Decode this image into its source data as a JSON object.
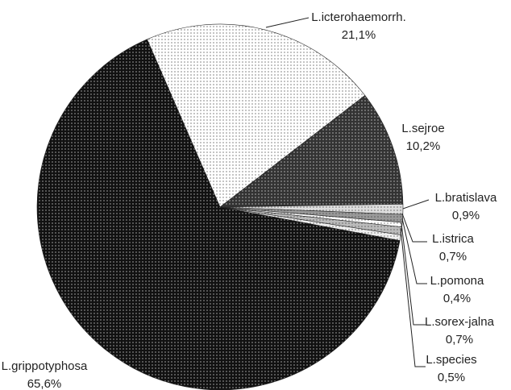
{
  "chart_data": {
    "type": "pie",
    "categories": [
      "L.icterohaemorrh.",
      "L.sejroe",
      "L.bratislava",
      "L.istrica",
      "L.pomona",
      "L.sorex-jalna",
      "L.species",
      "L.grippotyphosa"
    ],
    "values": [
      21.1,
      10.2,
      0.9,
      0.7,
      0.4,
      0.7,
      0.5,
      65.6
    ],
    "value_labels": [
      "21,1%",
      "10,2%",
      "0,9%",
      "0,7%",
      "0,4%",
      "0,7%",
      "0,5%",
      "65,6%"
    ],
    "colors": [
      "#ffffff",
      "#333333",
      "#dddddd",
      "#999999",
      "#ffffff",
      "#bbbbbb",
      "#eeeeee",
      "#111111"
    ]
  }
}
